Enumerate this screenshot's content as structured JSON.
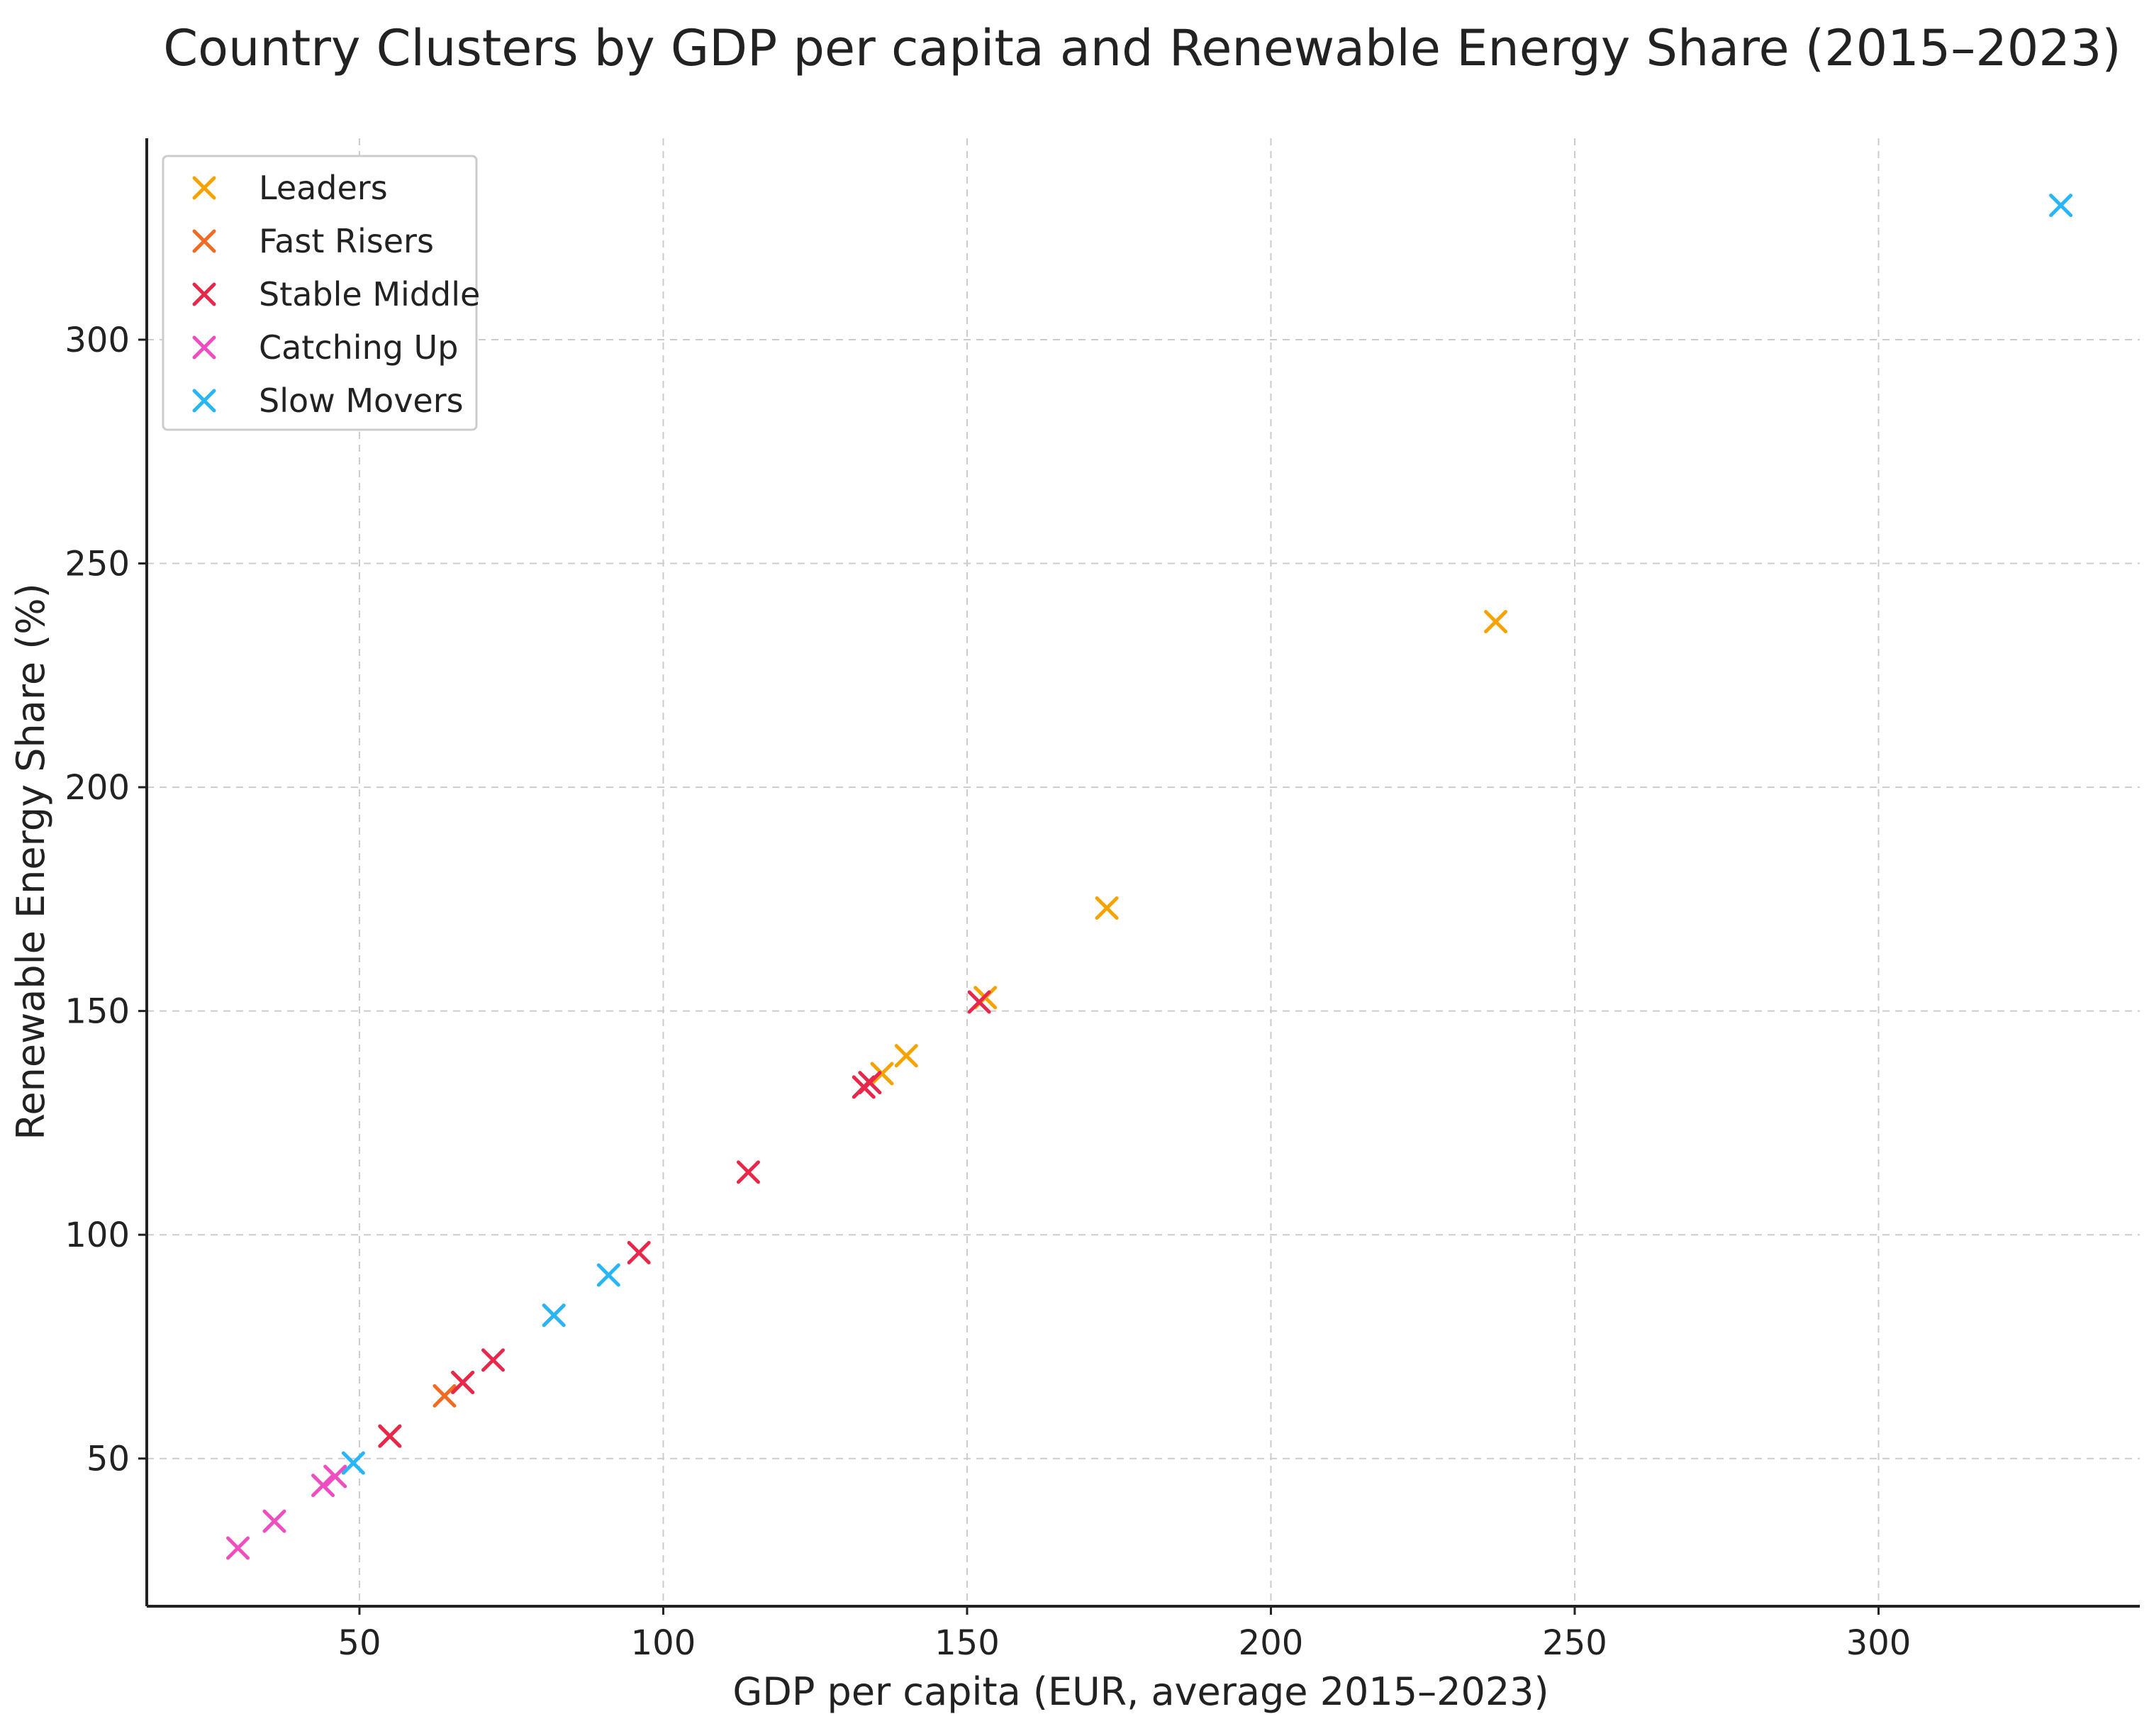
{
  "chart_data": {
    "type": "scatter",
    "title": "Country Clusters by GDP per capita and Renewable Energy Share (2015–2023)",
    "xlabel": "GDP per capita (EUR, average 2015–2023)",
    "ylabel": "Renewable Energy Share (%)",
    "xlim": [
      15,
      343
    ],
    "ylim": [
      17,
      345
    ],
    "xticks": [
      50,
      100,
      150,
      200,
      250,
      300
    ],
    "yticks": [
      50,
      100,
      150,
      200,
      250,
      300
    ],
    "grid": true,
    "marker": "x",
    "legend_position": "top-left",
    "series": [
      {
        "name": "Leaders",
        "color": "#f5a300",
        "points": [
          {
            "x": 136,
            "y": 136
          },
          {
            "x": 140,
            "y": 140
          },
          {
            "x": 153,
            "y": 153
          },
          {
            "x": 173,
            "y": 173
          },
          {
            "x": 237,
            "y": 237
          }
        ]
      },
      {
        "name": "Fast Risers",
        "color": "#f36b22",
        "points": [
          {
            "x": 55,
            "y": 55
          },
          {
            "x": 64,
            "y": 64
          },
          {
            "x": 67,
            "y": 67
          },
          {
            "x": 82,
            "y": 82
          }
        ]
      },
      {
        "name": "Stable Middle",
        "color": "#e8284b",
        "points": [
          {
            "x": 55,
            "y": 55
          },
          {
            "x": 67,
            "y": 67
          },
          {
            "x": 72,
            "y": 72
          },
          {
            "x": 96,
            "y": 96
          },
          {
            "x": 114,
            "y": 114
          },
          {
            "x": 133,
            "y": 133
          },
          {
            "x": 134,
            "y": 134
          },
          {
            "x": 152,
            "y": 152
          }
        ]
      },
      {
        "name": "Catching Up",
        "color": "#ee4fc0",
        "points": [
          {
            "x": 30,
            "y": 30
          },
          {
            "x": 36,
            "y": 36
          },
          {
            "x": 44,
            "y": 44
          },
          {
            "x": 46,
            "y": 46
          }
        ]
      },
      {
        "name": "Slow Movers",
        "color": "#29b6f6",
        "points": [
          {
            "x": 49,
            "y": 49
          },
          {
            "x": 82,
            "y": 82
          },
          {
            "x": 91,
            "y": 91
          },
          {
            "x": 330,
            "y": 330
          }
        ]
      }
    ]
  }
}
